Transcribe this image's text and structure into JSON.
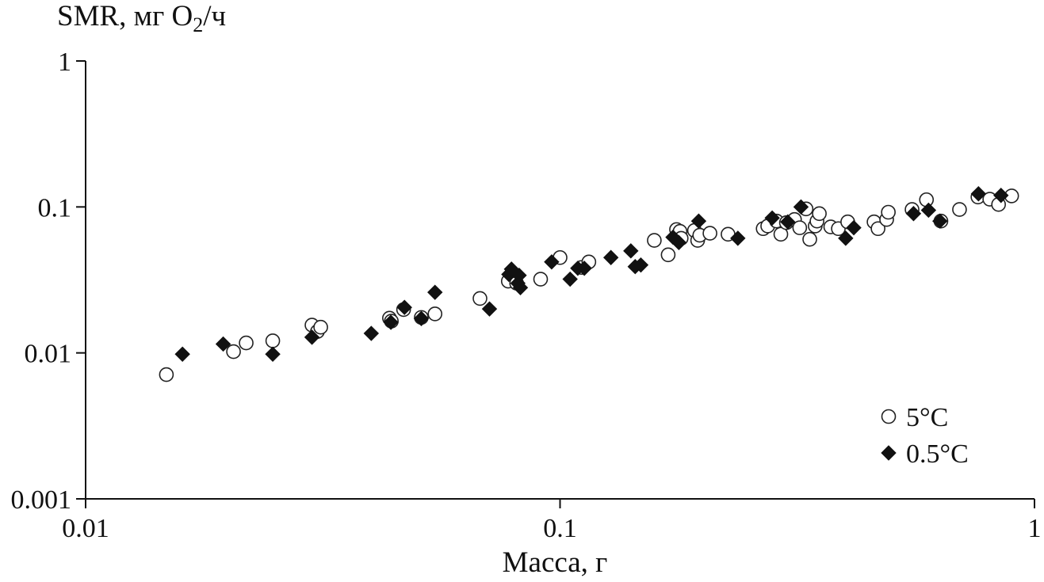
{
  "chart_data": {
    "type": "scatter",
    "title": "",
    "ylabel": {
      "text": "SMR, мг O",
      "sub": "2",
      "tail": "/ч"
    },
    "xlabel": "Масса, г",
    "x_scale": "log",
    "y_scale": "log",
    "xlim": [
      0.01,
      1
    ],
    "ylim": [
      0.001,
      1
    ],
    "x_ticks": [
      {
        "value": 0.01,
        "label": "0.01"
      },
      {
        "value": 0.1,
        "label": "0.1"
      },
      {
        "value": 1,
        "label": "1"
      }
    ],
    "y_ticks": [
      {
        "value": 0.001,
        "label": "0.001"
      },
      {
        "value": 0.01,
        "label": "0.01"
      },
      {
        "value": 0.1,
        "label": "0.1"
      },
      {
        "value": 1,
        "label": "1"
      }
    ],
    "grid": false,
    "legend_position": "bottom-right",
    "series": [
      {
        "name": "5°C",
        "marker": "open-circle",
        "color": "#222222",
        "points": [
          [
            0.0148,
            0.0071
          ],
          [
            0.0205,
            0.0102
          ],
          [
            0.0218,
            0.0117
          ],
          [
            0.0248,
            0.0121
          ],
          [
            0.03,
            0.0155
          ],
          [
            0.0308,
            0.014
          ],
          [
            0.0313,
            0.015
          ],
          [
            0.0437,
            0.0173
          ],
          [
            0.0441,
            0.0165
          ],
          [
            0.0468,
            0.0198
          ],
          [
            0.051,
            0.0175
          ],
          [
            0.0545,
            0.0185
          ],
          [
            0.0678,
            0.0236
          ],
          [
            0.0778,
            0.031
          ],
          [
            0.081,
            0.03
          ],
          [
            0.091,
            0.032
          ],
          [
            0.1,
            0.045
          ],
          [
            0.111,
            0.0385
          ],
          [
            0.115,
            0.042
          ],
          [
            0.158,
            0.059
          ],
          [
            0.169,
            0.047
          ],
          [
            0.176,
            0.07
          ],
          [
            0.179,
            0.068
          ],
          [
            0.18,
            0.061
          ],
          [
            0.192,
            0.069
          ],
          [
            0.195,
            0.059
          ],
          [
            0.197,
            0.064
          ],
          [
            0.207,
            0.066
          ],
          [
            0.226,
            0.065
          ],
          [
            0.268,
            0.071
          ],
          [
            0.274,
            0.074
          ],
          [
            0.286,
            0.08
          ],
          [
            0.292,
            0.065
          ],
          [
            0.3,
            0.078
          ],
          [
            0.312,
            0.082
          ],
          [
            0.32,
            0.072
          ],
          [
            0.33,
            0.097
          ],
          [
            0.336,
            0.06
          ],
          [
            0.345,
            0.074
          ],
          [
            0.348,
            0.08
          ],
          [
            0.352,
            0.09
          ],
          [
            0.372,
            0.073
          ],
          [
            0.386,
            0.071
          ],
          [
            0.404,
            0.079
          ],
          [
            0.459,
            0.079
          ],
          [
            0.468,
            0.071
          ],
          [
            0.488,
            0.082
          ],
          [
            0.492,
            0.092
          ],
          [
            0.552,
            0.096
          ],
          [
            0.592,
            0.112
          ],
          [
            0.635,
            0.08
          ],
          [
            0.695,
            0.096
          ],
          [
            0.76,
            0.117
          ],
          [
            0.805,
            0.113
          ],
          [
            0.84,
            0.104
          ],
          [
            0.895,
            0.119
          ]
        ]
      },
      {
        "name": "0.5°C",
        "marker": "filled-diamond",
        "color": "#111111",
        "points": [
          [
            0.016,
            0.0098
          ],
          [
            0.0195,
            0.0115
          ],
          [
            0.0248,
            0.0098
          ],
          [
            0.03,
            0.0128
          ],
          [
            0.04,
            0.0136
          ],
          [
            0.044,
            0.0162
          ],
          [
            0.047,
            0.0205
          ],
          [
            0.051,
            0.0172
          ],
          [
            0.0545,
            0.026
          ],
          [
            0.071,
            0.02
          ],
          [
            0.078,
            0.0345
          ],
          [
            0.079,
            0.0375
          ],
          [
            0.0815,
            0.03
          ],
          [
            0.082,
            0.034
          ],
          [
            0.0825,
            0.028
          ],
          [
            0.096,
            0.042
          ],
          [
            0.105,
            0.032
          ],
          [
            0.109,
            0.038
          ],
          [
            0.1125,
            0.038
          ],
          [
            0.128,
            0.045
          ],
          [
            0.141,
            0.05
          ],
          [
            0.144,
            0.039
          ],
          [
            0.148,
            0.04
          ],
          [
            0.173,
            0.062
          ],
          [
            0.178,
            0.057
          ],
          [
            0.196,
            0.08
          ],
          [
            0.237,
            0.061
          ],
          [
            0.28,
            0.084
          ],
          [
            0.302,
            0.079
          ],
          [
            0.322,
            0.1
          ],
          [
            0.4,
            0.061
          ],
          [
            0.416,
            0.072
          ],
          [
            0.556,
            0.09
          ],
          [
            0.598,
            0.095
          ],
          [
            0.632,
            0.08
          ],
          [
            0.762,
            0.123
          ],
          [
            0.85,
            0.12
          ]
        ]
      }
    ]
  }
}
